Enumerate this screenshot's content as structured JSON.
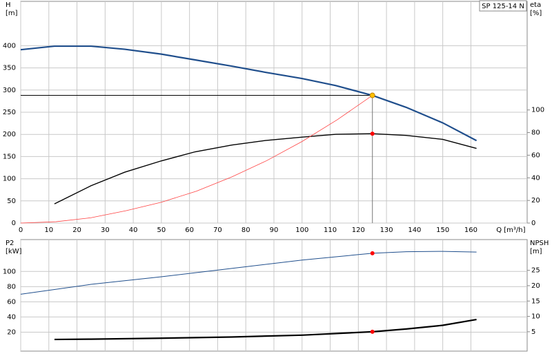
{
  "chart_data": [
    {
      "type": "line",
      "title": "SP 125-14 N",
      "x_label": "Q [m³/h]",
      "y_label": [
        "H",
        "[m]"
      ],
      "y2_label": [
        "eta",
        "[%]"
      ],
      "xlim": [
        0,
        180
      ],
      "xticks": [
        0,
        10,
        20,
        30,
        40,
        50,
        60,
        70,
        80,
        90,
        100,
        110,
        120,
        130,
        140,
        150,
        160
      ],
      "ylim": [
        0,
        500
      ],
      "yticks": [
        0,
        50,
        100,
        150,
        200,
        250,
        300,
        350,
        400
      ],
      "y2lim": [
        0,
        196
      ],
      "y2ticks": [
        0,
        20,
        40,
        60,
        80,
        100
      ],
      "grid": true,
      "series": [
        {
          "color": "#1f4e8c",
          "line_width": 2.2,
          "axis": "y",
          "x": [
            0,
            12,
            25,
            37,
            50,
            62,
            75,
            87,
            100,
            112,
            125,
            137,
            150,
            162
          ],
          "values": [
            391,
            399,
            399,
            392,
            381,
            368,
            354,
            340,
            326,
            310,
            288,
            261,
            226,
            186
          ]
        },
        {
          "color": "#000000",
          "line_width": 1.4,
          "axis": "y2",
          "x": [
            12,
            25,
            37,
            50,
            62,
            75,
            87,
            100,
            112,
            125,
            137,
            150,
            162
          ],
          "values": [
            17,
            33,
            45,
            55,
            63,
            69,
            73,
            76,
            78.5,
            79,
            77.5,
            74,
            66
          ]
        },
        {
          "color": "#ff4040",
          "line_width": 0.8,
          "axis": "y",
          "x": [
            0,
            12.5,
            25,
            37.5,
            50,
            62.5,
            75,
            87.5,
            100,
            112.5,
            125
          ],
          "values": [
            0,
            3,
            12,
            28,
            47,
            72,
            104,
            141,
            184,
            233,
            288
          ]
        }
      ],
      "operating_point": {
        "q": 125,
        "h": 288,
        "eta": 79
      }
    },
    {
      "type": "line",
      "y_label": [
        "P2",
        "[kW]"
      ],
      "y2_label": [
        "NPSH",
        "[m]"
      ],
      "xlim": [
        0,
        180
      ],
      "xticks": [
        0,
        10,
        20,
        30,
        40,
        50,
        60,
        70,
        80,
        90,
        100,
        110,
        120,
        130,
        140,
        150,
        160
      ],
      "ylim": [
        -5,
        142
      ],
      "yticks": [
        20,
        40,
        60,
        80,
        100
      ],
      "y2lim": [
        -1.3,
        35
      ],
      "y2ticks": [
        5,
        10,
        15,
        20,
        25
      ],
      "grid": true,
      "series": [
        {
          "color": "#1f4e8c",
          "line_width": 1,
          "axis": "y",
          "x": [
            0,
            25,
            50,
            75,
            100,
            125,
            137,
            150,
            162
          ],
          "values": [
            70,
            83,
            93,
            104,
            115,
            124,
            126,
            126.5,
            125.5
          ]
        },
        {
          "color": "#000000",
          "line_width": 2.2,
          "axis": "y2",
          "x": [
            12,
            25,
            50,
            75,
            100,
            125,
            137,
            150,
            162
          ],
          "values": [
            2.5,
            2.6,
            2.9,
            3.3,
            3.9,
            5,
            5.9,
            7.1,
            9
          ]
        }
      ],
      "operating_point": {
        "q": 125,
        "p2": 124,
        "npsh": 5
      }
    }
  ]
}
